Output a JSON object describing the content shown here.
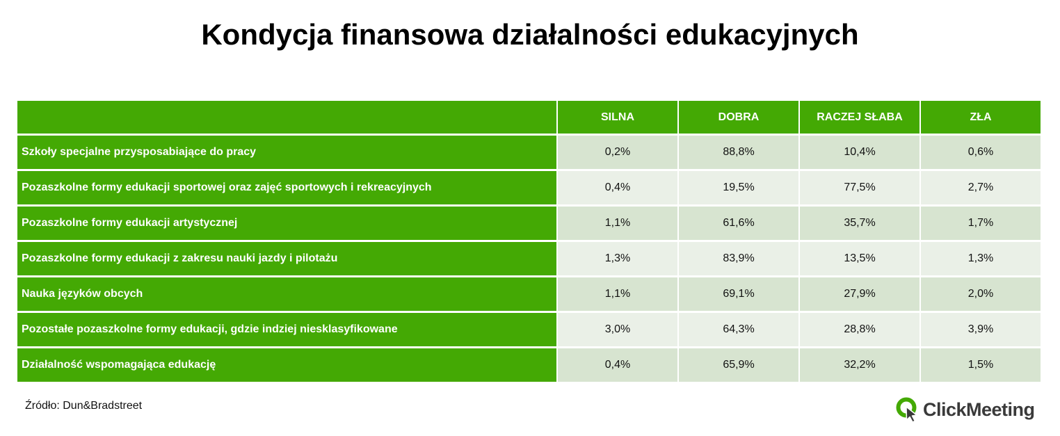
{
  "title": "Kondycja finansowa działalności edukacyjnych",
  "source": "Źródło: Dun&Bradstreet",
  "logo": {
    "name": "ClickMeeting",
    "icon": "clickmeeting-logo-icon",
    "color": "#44a904"
  },
  "colors": {
    "header_bg": "#44a904",
    "row_odd_bg": "#d7e4d0",
    "row_even_bg": "#eaf0e7"
  },
  "chart_data": {
    "type": "table",
    "title": "Kondycja finansowa działalności edukacyjnych",
    "columns": [
      "SILNA",
      "DOBRA",
      "RACZEJ SŁABA",
      "ZŁA"
    ],
    "rows": [
      {
        "label": "Szkoły specjalne przysposabiające do pracy",
        "values": [
          "0,2%",
          "88,8%",
          "10,4%",
          "0,6%"
        ]
      },
      {
        "label": "Pozaszkolne formy edukacji sportowej oraz zajęć sportowych i rekreacyjnych",
        "values": [
          "0,4%",
          "19,5%",
          "77,5%",
          "2,7%"
        ]
      },
      {
        "label": "Pozaszkolne formy edukacji artystycznej",
        "values": [
          "1,1%",
          "61,6%",
          "35,7%",
          "1,7%"
        ]
      },
      {
        "label": "Pozaszkolne formy edukacji z zakresu nauki jazdy i pilotażu",
        "values": [
          "1,3%",
          "83,9%",
          "13,5%",
          "1,3%"
        ]
      },
      {
        "label": "Nauka języków obcych",
        "values": [
          "1,1%",
          "69,1%",
          "27,9%",
          "2,0%"
        ]
      },
      {
        "label": "Pozostałe pozaszkolne formy edukacji, gdzie indziej niesklasyfikowane",
        "values": [
          "3,0%",
          "64,3%",
          "28,8%",
          "3,9%"
        ]
      },
      {
        "label": "Działalność wspomagająca edukację",
        "values": [
          "0,4%",
          "65,9%",
          "32,2%",
          "1,5%"
        ]
      }
    ]
  }
}
